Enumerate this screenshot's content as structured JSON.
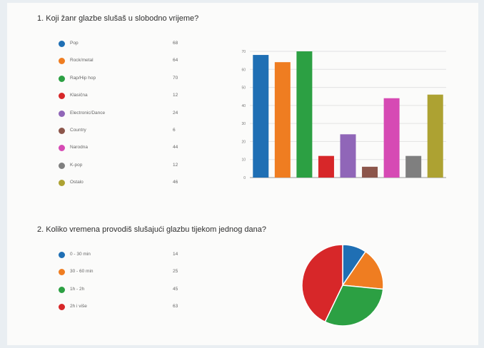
{
  "questions": [
    {
      "title": "1. Koji žanr glazbe slušaš u slobodno vrijeme?",
      "chart_data": {
        "type": "bar",
        "categories": [
          "Pop",
          "Rock/metal",
          "Rap/Hip hop",
          "Klasična",
          "Electronic/Dance",
          "Country",
          "Narodna",
          "K-pop",
          "Ostalo"
        ],
        "values": [
          68,
          64,
          70,
          12,
          24,
          6,
          44,
          12,
          46
        ],
        "value_labels": [
          "68",
          "64",
          "70",
          "12",
          "24",
          "6",
          "44",
          "12",
          "46"
        ],
        "colors": [
          "#1f6fb4",
          "#ef7d21",
          "#2ca043",
          "#d72729",
          "#9066b8",
          "#8c564b",
          "#d64ab4",
          "#7f7f7f",
          "#ada232"
        ],
        "ylim": [
          0,
          70
        ],
        "yticks": [
          0,
          10,
          20,
          30,
          40,
          50,
          60,
          70
        ],
        "ytick_labels": [
          "0",
          "10",
          "20",
          "30",
          "40",
          "50",
          "60",
          "70"
        ],
        "grid": true,
        "title": "",
        "xlabel": "",
        "ylabel": ""
      }
    },
    {
      "title": "2. Koliko vremena provodiš slušajući glazbu tijekom jednog dana?",
      "chart_data": {
        "type": "pie",
        "categories": [
          "0 - 30 min",
          "30 - 60 min",
          "1h - 2h",
          "2h i više"
        ],
        "values": [
          14,
          25,
          45,
          63
        ],
        "value_labels": [
          "14",
          "25",
          "45",
          "63"
        ],
        "colors": [
          "#1f6fb4",
          "#ef7d21",
          "#2ca043",
          "#d72729"
        ],
        "title": ""
      }
    }
  ]
}
